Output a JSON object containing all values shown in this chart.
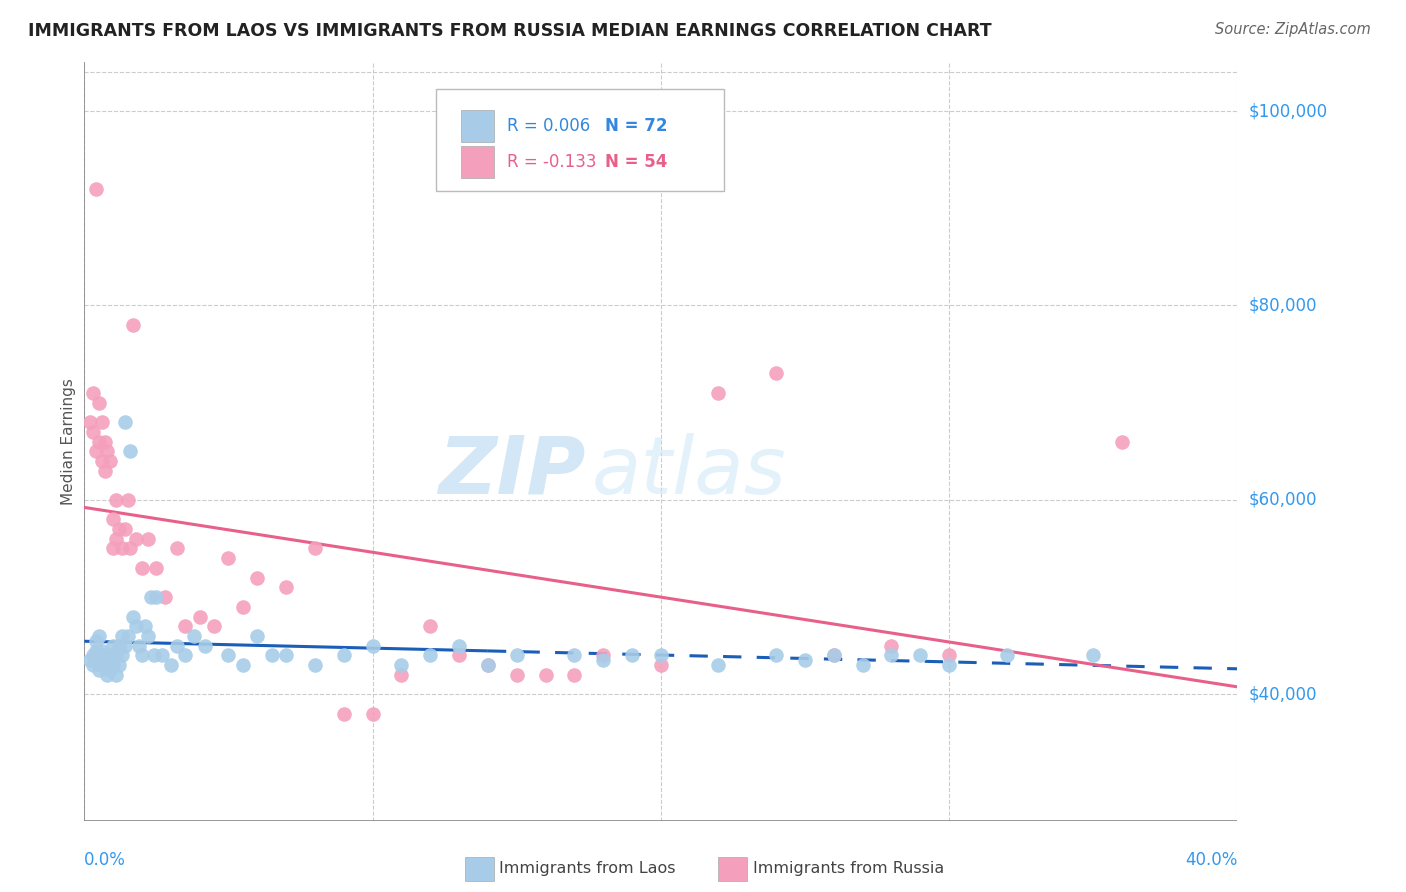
{
  "title": "IMMIGRANTS FROM LAOS VS IMMIGRANTS FROM RUSSIA MEDIAN EARNINGS CORRELATION CHART",
  "source": "Source: ZipAtlas.com",
  "ylabel": "Median Earnings",
  "ytick_labels": [
    "$40,000",
    "$60,000",
    "$80,000",
    "$100,000"
  ],
  "ytick_values": [
    40000,
    60000,
    80000,
    100000
  ],
  "xmin": 0.0,
  "xmax": 40.0,
  "ymin": 27000,
  "ymax": 105000,
  "watermark_zip": "ZIP",
  "watermark_atlas": "atlas",
  "legend_laos_R": "R = 0.006",
  "legend_laos_N": "N = 72",
  "legend_russia_R": "R = -0.133",
  "legend_russia_N": "N = 54",
  "color_laos": "#a8cce8",
  "color_russia": "#f4a0bc",
  "color_laos_line": "#1a5eb8",
  "color_russia_line": "#e8608a",
  "color_blue_text": "#3388dd",
  "color_pink_text": "#e8608a",
  "color_axis_right": "#3399ee",
  "laos_x": [
    0.2,
    0.3,
    0.3,
    0.4,
    0.4,
    0.5,
    0.5,
    0.5,
    0.6,
    0.6,
    0.7,
    0.7,
    0.8,
    0.8,
    0.8,
    0.9,
    0.9,
    1.0,
    1.0,
    1.0,
    1.1,
    1.1,
    1.2,
    1.2,
    1.3,
    1.3,
    1.4,
    1.4,
    1.5,
    1.6,
    1.7,
    1.8,
    1.9,
    2.0,
    2.1,
    2.2,
    2.3,
    2.4,
    2.5,
    2.7,
    3.0,
    3.2,
    3.5,
    3.8,
    4.2,
    5.0,
    5.5,
    6.0,
    6.5,
    7.0,
    8.0,
    9.0,
    10.0,
    11.0,
    12.0,
    13.0,
    14.0,
    15.0,
    17.0,
    18.0,
    19.0,
    20.0,
    22.0,
    24.0,
    25.0,
    26.0,
    27.0,
    28.0,
    29.0,
    30.0,
    32.0,
    35.0
  ],
  "laos_y": [
    43500,
    44000,
    43000,
    44500,
    45500,
    42500,
    44000,
    46000,
    43000,
    44500,
    43000,
    44000,
    43500,
    42000,
    44000,
    42500,
    43000,
    43000,
    44000,
    45000,
    42000,
    44000,
    43000,
    45000,
    44000,
    46000,
    45000,
    68000,
    46000,
    65000,
    48000,
    47000,
    45000,
    44000,
    47000,
    46000,
    50000,
    44000,
    50000,
    44000,
    43000,
    45000,
    44000,
    46000,
    45000,
    44000,
    43000,
    46000,
    44000,
    44000,
    43000,
    44000,
    45000,
    43000,
    44000,
    45000,
    43000,
    44000,
    44000,
    43500,
    44000,
    44000,
    43000,
    44000,
    43500,
    44000,
    43000,
    44000,
    44000,
    43000,
    44000,
    44000
  ],
  "russia_x": [
    0.2,
    0.3,
    0.3,
    0.4,
    0.4,
    0.5,
    0.5,
    0.6,
    0.6,
    0.7,
    0.7,
    0.8,
    0.9,
    1.0,
    1.0,
    1.1,
    1.1,
    1.2,
    1.3,
    1.4,
    1.5,
    1.6,
    1.7,
    1.8,
    2.0,
    2.2,
    2.5,
    2.8,
    3.2,
    3.5,
    4.0,
    4.5,
    5.0,
    5.5,
    6.0,
    7.0,
    8.0,
    9.0,
    10.0,
    11.0,
    12.0,
    13.0,
    14.0,
    15.0,
    16.0,
    17.0,
    18.0,
    20.0,
    22.0,
    24.0,
    26.0,
    28.0,
    30.0,
    36.0
  ],
  "russia_y": [
    68000,
    67000,
    71000,
    65000,
    92000,
    66000,
    70000,
    64000,
    68000,
    63000,
    66000,
    65000,
    64000,
    55000,
    58000,
    56000,
    60000,
    57000,
    55000,
    57000,
    60000,
    55000,
    78000,
    56000,
    53000,
    56000,
    53000,
    50000,
    55000,
    47000,
    48000,
    47000,
    54000,
    49000,
    52000,
    51000,
    55000,
    38000,
    38000,
    42000,
    47000,
    44000,
    43000,
    42000,
    42000,
    42000,
    44000,
    43000,
    71000,
    73000,
    44000,
    45000,
    44000,
    66000
  ],
  "laos_line_solid_end": 14.0,
  "russia_line_solid_end": 36.0,
  "xtick_positions": [
    0,
    10,
    20,
    30,
    40
  ],
  "ytick_grid_positions": [
    40000,
    60000,
    80000,
    100000
  ]
}
